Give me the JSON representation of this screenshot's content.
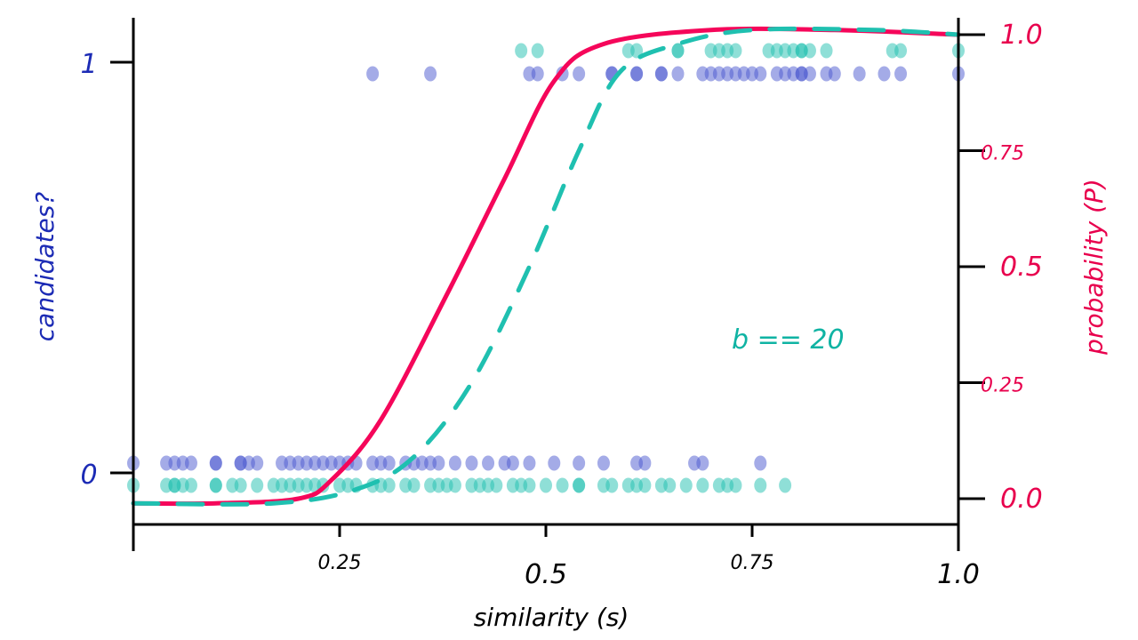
{
  "chart_data": {
    "type": "scatter",
    "title": "",
    "xlabel": "similarity (s)",
    "ylabel_left": "candidates?",
    "ylabel_right": "probability (P)",
    "annotation": "b == 20",
    "xlim": [
      0,
      1
    ],
    "ylim_left": [
      0,
      1
    ],
    "ylim_right": [
      0,
      1
    ],
    "x_ticks": [
      "0.25",
      "0.5",
      "0.75",
      "1.0"
    ],
    "x_tick_values": [
      0.25,
      0.5,
      0.75,
      1.0
    ],
    "left_ticks": [
      "0",
      "1"
    ],
    "left_tick_values": [
      0,
      1
    ],
    "right_ticks": [
      "0.0",
      "0.25",
      "0.5",
      "0.75",
      "1.0"
    ],
    "right_tick_values": [
      0,
      0.25,
      0.5,
      0.75,
      1.0
    ],
    "grid": false,
    "colors": {
      "blue": "#4a57d0",
      "teal": "#1fc0b0",
      "red": "#f5065a",
      "left_axis_text": "#1c2bb5",
      "right_axis_text": "#e8004d",
      "annotation": "#0fb3a3"
    },
    "scatter_series": [
      {
        "color": "blue",
        "candidate_0": [
          0.0,
          0.04,
          0.05,
          0.06,
          0.07,
          0.1,
          0.1,
          0.13,
          0.13,
          0.14,
          0.15,
          0.18,
          0.19,
          0.2,
          0.21,
          0.22,
          0.23,
          0.24,
          0.25,
          0.26,
          0.27,
          0.29,
          0.3,
          0.31,
          0.33,
          0.34,
          0.35,
          0.36,
          0.37,
          0.39,
          0.41,
          0.43,
          0.45,
          0.46,
          0.48,
          0.51,
          0.54,
          0.57,
          0.61,
          0.62,
          0.68,
          0.69,
          0.76
        ],
        "candidate_1": [
          0.29,
          0.36,
          0.48,
          0.49,
          0.52,
          0.54,
          0.58,
          0.58,
          0.61,
          0.61,
          0.64,
          0.64,
          0.66,
          0.69,
          0.7,
          0.71,
          0.72,
          0.73,
          0.74,
          0.75,
          0.76,
          0.78,
          0.79,
          0.8,
          0.81,
          0.81,
          0.82,
          0.84,
          0.85,
          0.88,
          0.91,
          0.93,
          1.0
        ]
      },
      {
        "color": "teal",
        "candidate_0": [
          0.0,
          0.04,
          0.05,
          0.05,
          0.06,
          0.07,
          0.1,
          0.1,
          0.12,
          0.13,
          0.15,
          0.17,
          0.18,
          0.19,
          0.2,
          0.21,
          0.22,
          0.23,
          0.25,
          0.26,
          0.27,
          0.29,
          0.3,
          0.31,
          0.33,
          0.34,
          0.36,
          0.37,
          0.38,
          0.39,
          0.41,
          0.42,
          0.43,
          0.44,
          0.46,
          0.47,
          0.48,
          0.5,
          0.52,
          0.54,
          0.54,
          0.57,
          0.58,
          0.6,
          0.61,
          0.62,
          0.64,
          0.65,
          0.67,
          0.69,
          0.71,
          0.72,
          0.73,
          0.76,
          0.79
        ],
        "candidate_1": [
          0.47,
          0.49,
          0.6,
          0.61,
          0.66,
          0.66,
          0.7,
          0.71,
          0.72,
          0.73,
          0.77,
          0.78,
          0.79,
          0.8,
          0.81,
          0.81,
          0.82,
          0.84,
          0.92,
          0.93,
          1.0
        ]
      }
    ],
    "curves": [
      {
        "color": "red",
        "style": "solid",
        "axis": "right",
        "x": [
          0,
          0.1,
          0.2,
          0.24,
          0.3,
          0.38,
          0.45,
          0.51,
          0.57,
          0.7,
          0.85,
          1.0
        ],
        "y": [
          -0.01,
          -0.01,
          0.0,
          0.04,
          0.17,
          0.44,
          0.69,
          0.9,
          0.98,
          1.01,
          1.01,
          1.0
        ]
      },
      {
        "color": "teal",
        "style": "dashed",
        "axis": "right",
        "x": [
          0,
          0.17,
          0.27,
          0.34,
          0.41,
          0.48,
          0.54,
          0.59,
          0.66,
          0.75,
          0.9,
          1.0
        ],
        "y": [
          -0.01,
          -0.01,
          0.02,
          0.09,
          0.25,
          0.5,
          0.75,
          0.92,
          0.98,
          1.01,
          1.01,
          1.0
        ]
      }
    ]
  }
}
